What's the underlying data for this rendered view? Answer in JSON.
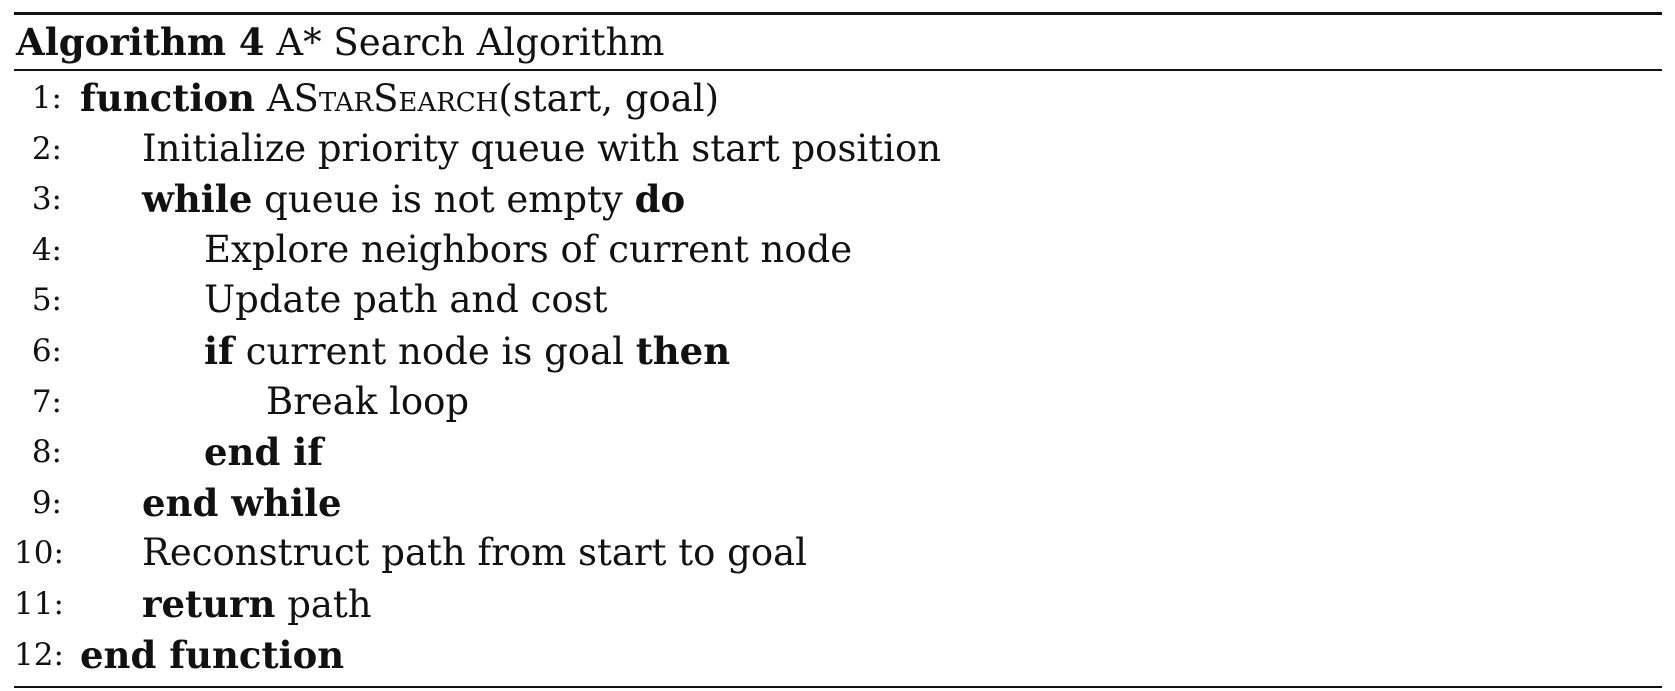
{
  "caption": {
    "label": "Algorithm 4",
    "title": "A* Search Algorithm"
  },
  "lines": [
    {
      "num": "1:",
      "kw": "function",
      "name": "AStarSearch",
      "args": "(start, goal)"
    },
    {
      "num": "2:",
      "text": "Initialize priority queue with start position"
    },
    {
      "num": "3:",
      "kw": "while",
      "text": "queue is not empty",
      "kw2": "do"
    },
    {
      "num": "4:",
      "text": "Explore neighbors of current node"
    },
    {
      "num": "5:",
      "text": "Update path and cost"
    },
    {
      "num": "6:",
      "kw": "if",
      "text": "current node is goal",
      "kw2": "then"
    },
    {
      "num": "7:",
      "text": "Break loop"
    },
    {
      "num": "8:",
      "kw": "end if"
    },
    {
      "num": "9:",
      "kw": "end while"
    },
    {
      "num": "10:",
      "text": "Reconstruct path from start to goal"
    },
    {
      "num": "11:",
      "kw": "return",
      "text": "path"
    },
    {
      "num": "12:",
      "kw": "end function"
    }
  ]
}
